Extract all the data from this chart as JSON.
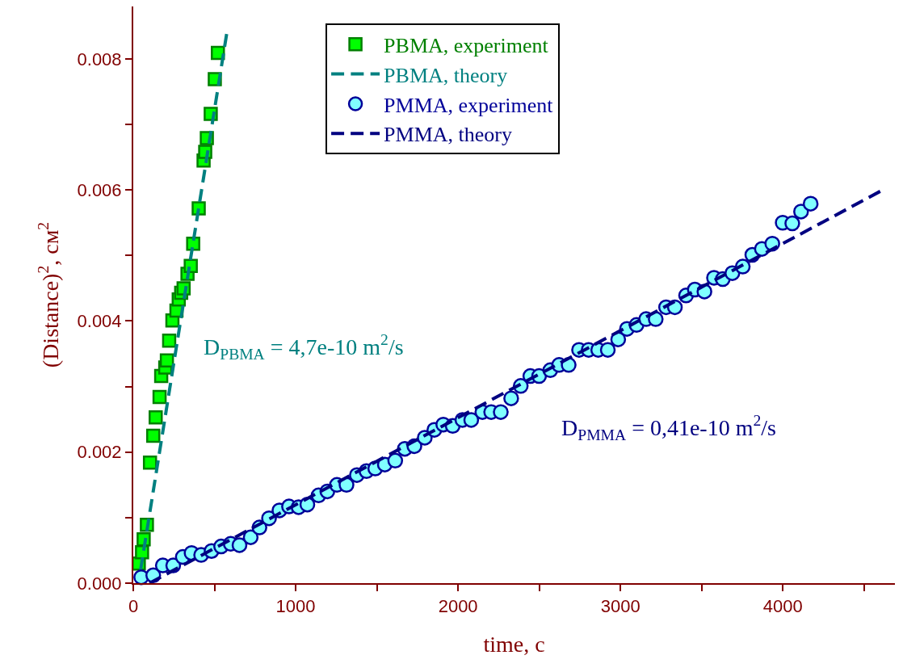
{
  "chart_data": {
    "type": "scatter",
    "xlabel": "time, c",
    "ylabel": "(Distance)$^{2}$, см$^{2}$",
    "xlim": [
      0,
      4690
    ],
    "ylim": [
      0,
      0.0088
    ],
    "xticks": [
      0,
      {
        "value": 500,
        "label": null
      },
      1000,
      {
        "value": 1500,
        "label": null
      },
      2000,
      {
        "value": 2500,
        "label": null
      },
      3000,
      {
        "value": 3500,
        "label": null
      },
      4000,
      {
        "value": 4500,
        "label": null
      }
    ],
    "yticks": [
      {
        "value": 0,
        "label": "0.000"
      },
      {
        "value": 0.001,
        "label": null
      },
      {
        "value": 0.002,
        "label": "0.002"
      },
      {
        "value": 0.003,
        "label": null
      },
      {
        "value": 0.004,
        "label": "0.004"
      },
      {
        "value": 0.005,
        "label": null
      },
      {
        "value": 0.006,
        "label": "0.006"
      },
      {
        "value": 0.007,
        "label": null
      },
      {
        "value": 0.008,
        "label": "0.008"
      }
    ],
    "grid": false,
    "legend": "top",
    "annotations": [
      "D$_{PBMA}$ = 4,7e-10 m$^{2}$/s",
      "D$_{PMMA}$ = 0,41e-10 m$^{2}$/s"
    ],
    "series": [
      {
        "name": "PBMA, experiment",
        "marker": "square",
        "color": "#00ff00",
        "x": [
          34,
          54,
          64,
          84,
          103,
          123,
          138,
          162,
          172,
          197,
          207,
          221,
          241,
          266,
          280,
          295,
          310,
          334,
          354,
          369,
          403,
          433,
          443,
          453,
          477,
          502,
          521
        ],
        "values": [
          0.0003,
          0.00047,
          0.00067,
          0.00089,
          0.00184,
          0.00225,
          0.00253,
          0.00284,
          0.00316,
          0.00329,
          0.0034,
          0.0037,
          0.00401,
          0.00416,
          0.00433,
          0.00443,
          0.0045,
          0.00472,
          0.00484,
          0.00518,
          0.00572,
          0.00645,
          0.00658,
          0.00679,
          0.00716,
          0.00769,
          0.00809
        ]
      },
      {
        "name": "PBMA, theory",
        "type": "line",
        "line_style": "dashed",
        "marker": "none",
        "color": "#008080",
        "x": [
          45,
          575
        ],
        "values": [
          0.0002,
          0.00838
        ]
      },
      {
        "name": "PMMA, experiment",
        "marker": "circle",
        "color": "#80ffff",
        "x": [
          49,
          123,
          182,
          246,
          305,
          359,
          418,
          482,
          541,
          600,
          654,
          723,
          777,
          836,
          900,
          959,
          1018,
          1072,
          1141,
          1195,
          1254,
          1313,
          1377,
          1436,
          1490,
          1549,
          1613,
          1672,
          1731,
          1795,
          1854,
          1909,
          1967,
          2027,
          2081,
          2150,
          2204,
          2263,
          2327,
          2386,
          2445,
          2499,
          2568,
          2622,
          2681,
          2745,
          2804,
          2863,
          2922,
          2986,
          3040,
          3099,
          3158,
          3217,
          3281,
          3335,
          3404,
          3458,
          3517,
          3576,
          3630,
          3689,
          3753,
          3812,
          3871,
          3935,
          3999,
          4058,
          4112,
          4171
        ],
        "values": [
          9e-05,
          0.00012,
          0.00027,
          0.00027,
          0.0004,
          0.00046,
          0.00043,
          0.00049,
          0.00056,
          0.0006,
          0.00058,
          0.0007,
          0.00085,
          0.00099,
          0.00111,
          0.00117,
          0.00116,
          0.0012,
          0.00134,
          0.0014,
          0.0015,
          0.0015,
          0.00165,
          0.00171,
          0.00175,
          0.00181,
          0.00187,
          0.00205,
          0.00209,
          0.00222,
          0.00234,
          0.00242,
          0.0024,
          0.00249,
          0.00249,
          0.00261,
          0.00261,
          0.00261,
          0.00282,
          0.00301,
          0.00316,
          0.00316,
          0.00325,
          0.00333,
          0.00333,
          0.00356,
          0.00356,
          0.00356,
          0.00356,
          0.00372,
          0.00388,
          0.00394,
          0.00403,
          0.00403,
          0.00421,
          0.00421,
          0.00439,
          0.00448,
          0.00445,
          0.00466,
          0.00464,
          0.00473,
          0.00483,
          0.00501,
          0.0051,
          0.00518,
          0.0055,
          0.00549,
          0.00567,
          0.00579
        ]
      },
      {
        "name": "PMMA, theory",
        "type": "line",
        "line_style": "dashed",
        "marker": "none",
        "color": "#000080",
        "x": [
          100,
          4600
        ],
        "values": [
          0,
          0.00598
        ]
      }
    ]
  }
}
